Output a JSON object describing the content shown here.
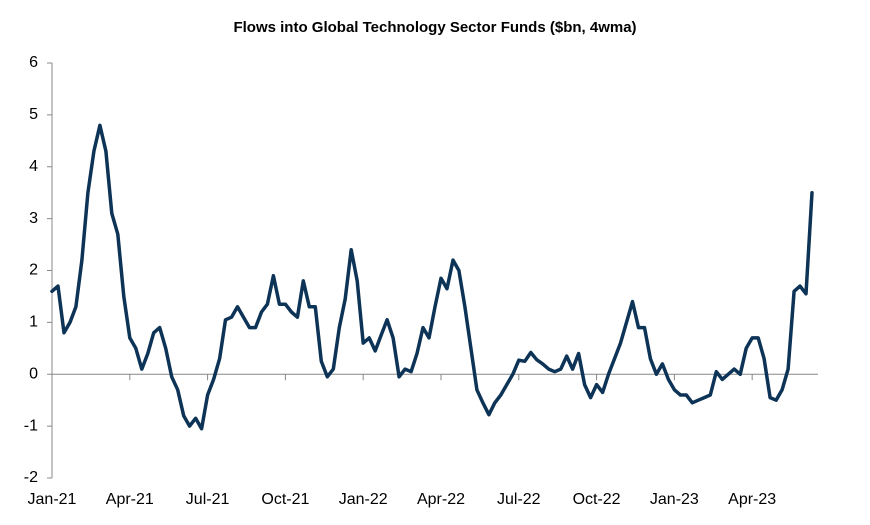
{
  "chart_data": {
    "type": "line",
    "title": "Flows into Global Technology Sector Funds ($bn, 4wma)",
    "categories": [
      "Jan-21",
      null,
      null,
      null,
      null,
      null,
      null,
      null,
      null,
      null,
      null,
      null,
      null,
      "Apr-21",
      null,
      null,
      null,
      null,
      null,
      null,
      null,
      null,
      null,
      null,
      null,
      null,
      "Jul-21",
      null,
      null,
      null,
      null,
      null,
      null,
      null,
      null,
      null,
      null,
      null,
      null,
      "Oct-21",
      null,
      null,
      null,
      null,
      null,
      null,
      null,
      null,
      null,
      null,
      null,
      null,
      "Jan-22",
      null,
      null,
      null,
      null,
      null,
      null,
      null,
      null,
      null,
      null,
      null,
      null,
      "Apr-22",
      null,
      null,
      null,
      null,
      null,
      null,
      null,
      null,
      null,
      null,
      null,
      null,
      "Jul-22",
      null,
      null,
      null,
      null,
      null,
      null,
      null,
      null,
      null,
      null,
      null,
      null,
      "Oct-22",
      null,
      null,
      null,
      null,
      null,
      null,
      null,
      null,
      null,
      null,
      null,
      null,
      "Jan-23",
      null,
      null,
      null,
      null,
      null,
      null,
      null,
      null,
      null,
      null,
      null,
      null,
      "Apr-23",
      null,
      null,
      null,
      null,
      null,
      null,
      null,
      null,
      null,
      null
    ],
    "series": [
      {
        "color": "#0d3356",
        "values": [
          1.6,
          1.7,
          0.8,
          1.0,
          1.3,
          2.2,
          3.5,
          4.3,
          4.8,
          4.3,
          3.1,
          2.7,
          1.5,
          0.7,
          0.5,
          0.1,
          0.4,
          0.8,
          0.9,
          0.5,
          -0.05,
          -0.3,
          -0.8,
          -1.0,
          -0.85,
          -1.05,
          -0.4,
          -0.1,
          0.3,
          1.05,
          1.1,
          1.3,
          1.1,
          0.9,
          0.9,
          1.2,
          1.35,
          1.9,
          1.35,
          1.35,
          1.2,
          1.1,
          1.8,
          1.3,
          1.3,
          0.25,
          -0.05,
          0.1,
          0.9,
          1.45,
          2.4,
          1.8,
          0.6,
          0.7,
          0.45,
          0.75,
          1.05,
          0.7,
          -0.05,
          0.1,
          0.05,
          0.4,
          0.9,
          0.7,
          1.3,
          1.85,
          1.65,
          2.2,
          2.0,
          1.3,
          0.5,
          -0.3,
          -0.55,
          -0.78,
          -0.55,
          -0.4,
          -0.2,
          0.0,
          0.27,
          0.25,
          0.42,
          0.28,
          0.2,
          0.1,
          0.05,
          0.1,
          0.35,
          0.1,
          0.4,
          -0.2,
          -0.45,
          -0.2,
          -0.35,
          0.0,
          0.3,
          0.6,
          1.0,
          1.4,
          0.9,
          0.9,
          0.3,
          0.0,
          0.2,
          -0.1,
          -0.3,
          -0.4,
          -0.4,
          -0.55,
          -0.5,
          -0.45,
          -0.4,
          0.05,
          -0.1,
          0.0,
          0.1,
          0.0,
          0.5,
          0.7,
          0.7,
          0.3,
          -0.45,
          -0.5,
          -0.3,
          0.1,
          1.6,
          1.7,
          1.55,
          3.5
        ]
      }
    ],
    "ylim": [
      -2,
      6
    ],
    "yticks": [
      -2,
      -1,
      0,
      1,
      2,
      3,
      4,
      5,
      6
    ]
  }
}
